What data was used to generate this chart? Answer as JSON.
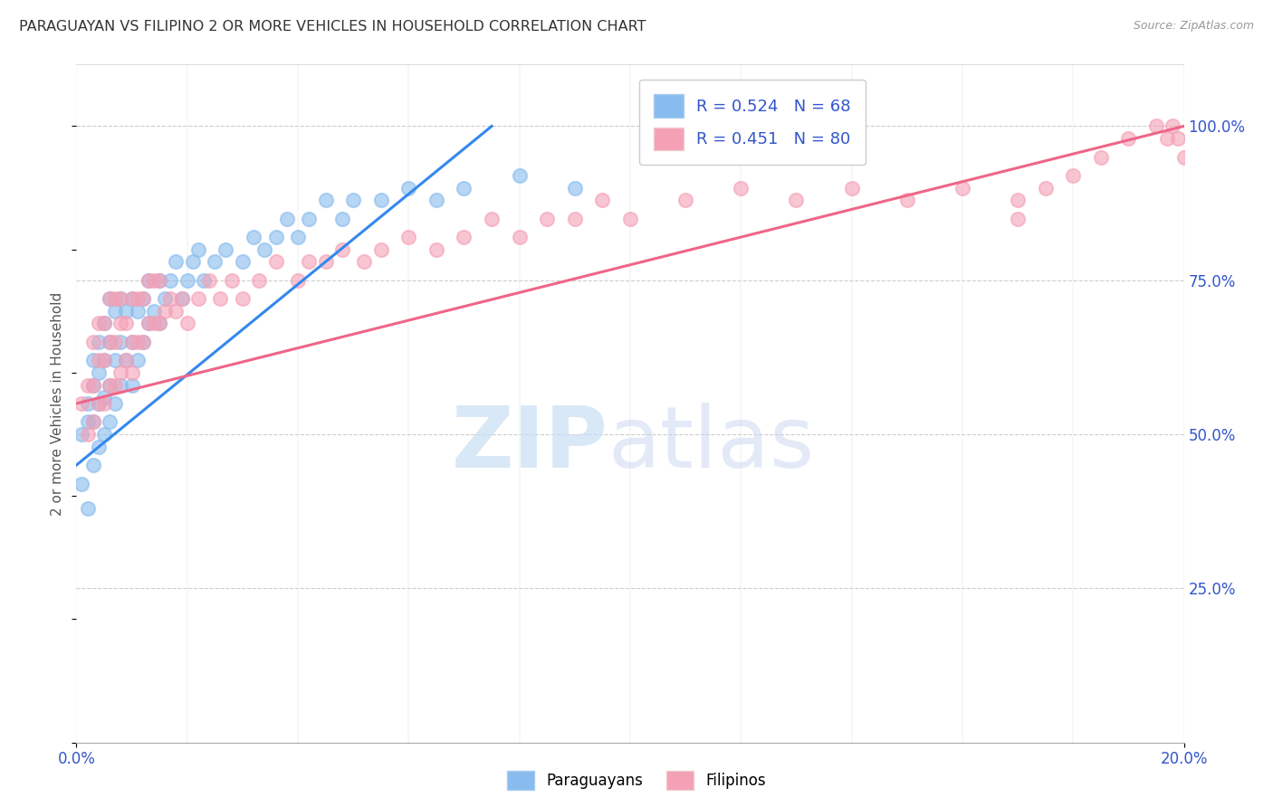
{
  "title": "PARAGUAYAN VS FILIPINO 2 OR MORE VEHICLES IN HOUSEHOLD CORRELATION CHART",
  "source": "Source: ZipAtlas.com",
  "ylabel": "2 or more Vehicles in Household",
  "xmin": 0.0,
  "xmax": 0.2,
  "ymin": 0.0,
  "ymax": 1.1,
  "color_paraguayan": "#88bbee",
  "color_filipino": "#f4a0b5",
  "color_line_par": "#3388ee",
  "color_line_fil": "#ee6688",
  "color_text_blue": "#3355cc",
  "legend_r1": "R = 0.524",
  "legend_n1": "N = 68",
  "legend_r2": "R = 0.451",
  "legend_n2": "N = 80",
  "par_x": [
    0.001,
    0.001,
    0.002,
    0.002,
    0.002,
    0.003,
    0.003,
    0.003,
    0.003,
    0.004,
    0.004,
    0.004,
    0.004,
    0.005,
    0.005,
    0.005,
    0.005,
    0.006,
    0.006,
    0.006,
    0.006,
    0.007,
    0.007,
    0.007,
    0.008,
    0.008,
    0.008,
    0.009,
    0.009,
    0.01,
    0.01,
    0.01,
    0.011,
    0.011,
    0.012,
    0.012,
    0.013,
    0.013,
    0.014,
    0.015,
    0.015,
    0.016,
    0.017,
    0.018,
    0.019,
    0.02,
    0.021,
    0.022,
    0.023,
    0.025,
    0.027,
    0.03,
    0.032,
    0.034,
    0.036,
    0.038,
    0.04,
    0.042,
    0.045,
    0.048,
    0.05,
    0.055,
    0.06,
    0.065,
    0.07,
    0.08,
    0.09,
    0.11
  ],
  "par_y": [
    0.42,
    0.5,
    0.38,
    0.52,
    0.55,
    0.45,
    0.52,
    0.58,
    0.62,
    0.48,
    0.55,
    0.6,
    0.65,
    0.5,
    0.56,
    0.62,
    0.68,
    0.52,
    0.58,
    0.65,
    0.72,
    0.55,
    0.62,
    0.7,
    0.58,
    0.65,
    0.72,
    0.62,
    0.7,
    0.58,
    0.65,
    0.72,
    0.62,
    0.7,
    0.65,
    0.72,
    0.68,
    0.75,
    0.7,
    0.68,
    0.75,
    0.72,
    0.75,
    0.78,
    0.72,
    0.75,
    0.78,
    0.8,
    0.75,
    0.78,
    0.8,
    0.78,
    0.82,
    0.8,
    0.82,
    0.85,
    0.82,
    0.85,
    0.88,
    0.85,
    0.88,
    0.88,
    0.9,
    0.88,
    0.9,
    0.92,
    0.9,
    0.95
  ],
  "fil_x": [
    0.001,
    0.002,
    0.002,
    0.003,
    0.003,
    0.003,
    0.004,
    0.004,
    0.004,
    0.005,
    0.005,
    0.005,
    0.006,
    0.006,
    0.006,
    0.007,
    0.007,
    0.007,
    0.008,
    0.008,
    0.008,
    0.009,
    0.009,
    0.01,
    0.01,
    0.01,
    0.011,
    0.011,
    0.012,
    0.012,
    0.013,
    0.013,
    0.014,
    0.014,
    0.015,
    0.015,
    0.016,
    0.017,
    0.018,
    0.019,
    0.02,
    0.022,
    0.024,
    0.026,
    0.028,
    0.03,
    0.033,
    0.036,
    0.04,
    0.042,
    0.045,
    0.048,
    0.052,
    0.055,
    0.06,
    0.065,
    0.07,
    0.075,
    0.08,
    0.085,
    0.09,
    0.095,
    0.1,
    0.11,
    0.12,
    0.13,
    0.14,
    0.15,
    0.16,
    0.17,
    0.175,
    0.18,
    0.185,
    0.19,
    0.195,
    0.197,
    0.198,
    0.199,
    0.2,
    0.17
  ],
  "fil_y": [
    0.55,
    0.5,
    0.58,
    0.52,
    0.58,
    0.65,
    0.55,
    0.62,
    0.68,
    0.55,
    0.62,
    0.68,
    0.58,
    0.65,
    0.72,
    0.58,
    0.65,
    0.72,
    0.6,
    0.68,
    0.72,
    0.62,
    0.68,
    0.6,
    0.65,
    0.72,
    0.65,
    0.72,
    0.65,
    0.72,
    0.68,
    0.75,
    0.68,
    0.75,
    0.68,
    0.75,
    0.7,
    0.72,
    0.7,
    0.72,
    0.68,
    0.72,
    0.75,
    0.72,
    0.75,
    0.72,
    0.75,
    0.78,
    0.75,
    0.78,
    0.78,
    0.8,
    0.78,
    0.8,
    0.82,
    0.8,
    0.82,
    0.85,
    0.82,
    0.85,
    0.85,
    0.88,
    0.85,
    0.88,
    0.9,
    0.88,
    0.9,
    0.88,
    0.9,
    0.88,
    0.9,
    0.92,
    0.95,
    0.98,
    1.0,
    0.98,
    1.0,
    0.98,
    0.95,
    0.85
  ],
  "par_line_x": [
    0.0,
    0.075
  ],
  "par_line_y": [
    0.45,
    1.0
  ],
  "fil_line_x": [
    0.0,
    0.2
  ],
  "fil_line_y": [
    0.55,
    1.0
  ]
}
